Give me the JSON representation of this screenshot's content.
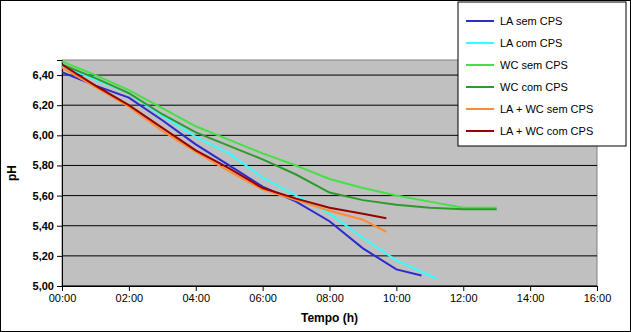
{
  "chart_data": {
    "type": "line",
    "x_label": "Tempo (h)",
    "y_label": "pH",
    "xlim": [
      0,
      16
    ],
    "xticks": [
      {
        "value": 0,
        "label": "00:00"
      },
      {
        "value": 2,
        "label": "02:00"
      },
      {
        "value": 4,
        "label": "04:00"
      },
      {
        "value": 6,
        "label": "06:00"
      },
      {
        "value": 8,
        "label": "08:00"
      },
      {
        "value": 10,
        "label": "10:00"
      },
      {
        "value": 12,
        "label": "12:00"
      },
      {
        "value": 14,
        "label": "14:00"
      },
      {
        "value": 16,
        "label": "16:00"
      }
    ],
    "ylim": [
      5.0,
      6.5
    ],
    "yticks": [
      {
        "value": 5.0,
        "label": "5,00"
      },
      {
        "value": 5.2,
        "label": "5,20"
      },
      {
        "value": 5.4,
        "label": "5,40"
      },
      {
        "value": 5.6,
        "label": "5,60"
      },
      {
        "value": 5.8,
        "label": "5,80"
      },
      {
        "value": 6.0,
        "label": "6,00"
      },
      {
        "value": 6.2,
        "label": "6,20"
      },
      {
        "value": 6.4,
        "label": "6,40"
      }
    ],
    "grid": true,
    "legend": "top-right",
    "series": [
      {
        "name": "LA sem CPS",
        "color": "#2a2ad0",
        "x": [
          0,
          1,
          2,
          3,
          4,
          5,
          6,
          7,
          8,
          9,
          10,
          10.75
        ],
        "values": [
          6.42,
          6.33,
          6.25,
          6.1,
          5.94,
          5.8,
          5.66,
          5.56,
          5.43,
          5.25,
          5.11,
          5.07
        ]
      },
      {
        "name": "LA com CPS",
        "color": "#33ffff",
        "x": [
          0,
          1,
          2,
          3,
          4,
          5,
          6,
          7,
          8,
          9,
          10,
          11.2
        ],
        "values": [
          6.46,
          6.37,
          6.28,
          6.13,
          5.99,
          5.88,
          5.72,
          5.6,
          5.48,
          5.32,
          5.17,
          5.05
        ]
      },
      {
        "name": "WC sem CPS",
        "color": "#44e044",
        "x": [
          0,
          1,
          2,
          3,
          4,
          5,
          6,
          7,
          8,
          9,
          10,
          11,
          12,
          13
        ],
        "values": [
          6.49,
          6.4,
          6.3,
          6.18,
          6.06,
          5.97,
          5.88,
          5.8,
          5.71,
          5.65,
          5.6,
          5.56,
          5.52,
          5.52
        ]
      },
      {
        "name": "WC com CPS",
        "color": "#2e9a2e",
        "x": [
          0,
          1,
          2,
          3,
          4,
          5,
          6,
          7,
          8,
          9,
          10,
          11,
          12,
          13
        ],
        "values": [
          6.47,
          6.38,
          6.28,
          6.14,
          6.02,
          5.93,
          5.84,
          5.74,
          5.62,
          5.57,
          5.54,
          5.52,
          5.51,
          5.51
        ]
      },
      {
        "name": "LA + WC sem CPS",
        "color": "#ff8c33",
        "x": [
          0,
          1,
          2,
          3,
          4,
          5,
          6,
          7,
          8,
          9,
          9.7
        ],
        "values": [
          6.45,
          6.32,
          6.19,
          6.03,
          5.89,
          5.76,
          5.64,
          5.57,
          5.5,
          5.44,
          5.36
        ]
      },
      {
        "name": "LA + WC com CPS",
        "color": "#990000",
        "x": [
          0,
          1,
          2,
          3,
          4,
          5,
          6,
          7,
          8,
          9,
          9.7
        ],
        "values": [
          6.47,
          6.33,
          6.2,
          6.05,
          5.9,
          5.78,
          5.65,
          5.58,
          5.52,
          5.48,
          5.45
        ]
      }
    ]
  }
}
